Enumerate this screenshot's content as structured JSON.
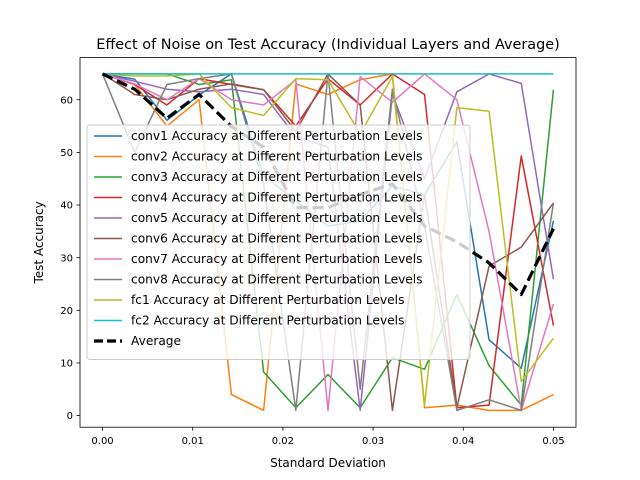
{
  "chart_data": {
    "type": "line",
    "title": "Effect of Noise on Test Accuracy (Individual Layers and Average)",
    "xlabel": "Standard Deviation",
    "ylabel": "Test Accuracy",
    "xlim": [
      -0.0025,
      0.0525
    ],
    "ylim": [
      -2.2,
      68.0
    ],
    "xticks": [
      0.0,
      0.01,
      0.02,
      0.03,
      0.04,
      0.05
    ],
    "xtick_labels": [
      "0.00",
      "0.01",
      "0.02",
      "0.03",
      "0.04",
      "0.05"
    ],
    "yticks": [
      0,
      10,
      20,
      30,
      40,
      50,
      60
    ],
    "ytick_labels": [
      "0",
      "10",
      "20",
      "30",
      "40",
      "50",
      "60"
    ],
    "legend_position": "center-left",
    "grid": false,
    "x": [
      0.0,
      0.00357,
      0.00714,
      0.01071,
      0.01429,
      0.01786,
      0.02143,
      0.025,
      0.02857,
      0.03214,
      0.03571,
      0.03929,
      0.04286,
      0.04643,
      0.05
    ],
    "series": [
      {
        "name": "conv1 Accuracy at Different Perturbation Levels",
        "color": "#1f77b4",
        "values": [
          64.9,
          63.9,
          56.1,
          60.9,
          64.9,
          45.6,
          40.8,
          36.0,
          37.0,
          43.6,
          42.0,
          52.0,
          14.4,
          9.0,
          37.0
        ]
      },
      {
        "name": "conv2 Accuracy at Different Perturbation Levels",
        "color": "#ff7f0e",
        "values": [
          64.9,
          62.9,
          55.0,
          60.0,
          4.0,
          1.0,
          63.0,
          61.0,
          63.8,
          64.9,
          1.5,
          2.0,
          1.0,
          1.0,
          4.0
        ]
      },
      {
        "name": "conv3 Accuracy at Different Perturbation Levels",
        "color": "#2ca02c",
        "values": [
          64.9,
          64.9,
          64.9,
          62.9,
          63.8,
          8.3,
          1.5,
          7.8,
          1.5,
          11.0,
          8.8,
          23.0,
          9.5,
          2.0,
          61.9
        ]
      },
      {
        "name": "conv4 Accuracy at Different Perturbation Levels",
        "color": "#d62728",
        "values": [
          64.9,
          62.9,
          59.0,
          64.0,
          62.9,
          61.9,
          55.0,
          64.0,
          59.0,
          64.9,
          61.0,
          1.5,
          2.0,
          49.3,
          17.1
        ]
      },
      {
        "name": "conv5 Accuracy at Different Perturbation Levels",
        "color": "#9467bd",
        "values": [
          64.9,
          63.5,
          62.0,
          61.5,
          62.0,
          61.0,
          53.0,
          51.0,
          1.0,
          61.0,
          45.0,
          61.5,
          64.9,
          63.1,
          25.9
        ]
      },
      {
        "name": "conv6 Accuracy at Different Perturbation Levels",
        "color": "#8c564b",
        "values": [
          64.9,
          61.0,
          60.0,
          62.0,
          63.0,
          61.9,
          54.0,
          64.9,
          59.0,
          1.0,
          42.0,
          1.5,
          28.4,
          32.0,
          40.4
        ]
      },
      {
        "name": "conv7 Accuracy at Different Perturbation Levels",
        "color": "#e377c2",
        "values": [
          64.9,
          63.0,
          60.0,
          64.0,
          60.0,
          59.0,
          63.8,
          1.0,
          64.4,
          59.5,
          64.9,
          60.0,
          35.0,
          1.0,
          21.2
        ]
      },
      {
        "name": "conv8 Accuracy at Different Perturbation Levels",
        "color": "#7f7f7f",
        "values": [
          64.9,
          50.0,
          62.9,
          64.0,
          64.9,
          44.0,
          1.0,
          64.9,
          5.0,
          62.0,
          36.0,
          1.0,
          3.0,
          1.0,
          40.4
        ]
      },
      {
        "name": "fc1 Accuracy at Different Perturbation Levels",
        "color": "#bcbd22",
        "values": [
          64.9,
          64.5,
          64.5,
          64.9,
          58.5,
          57.0,
          64.0,
          63.8,
          53.5,
          64.4,
          2.0,
          58.5,
          57.8,
          6.5,
          14.7
        ]
      },
      {
        "name": "fc2 Accuracy at Different Perturbation Levels",
        "color": "#17becf",
        "values": [
          64.9,
          64.9,
          64.9,
          64.9,
          64.9,
          64.9,
          64.9,
          64.9,
          64.9,
          64.9,
          64.9,
          64.9,
          64.9,
          64.9,
          64.9
        ]
      },
      {
        "name": "Average",
        "color": "#000000",
        "dashed": true,
        "values": [
          64.9,
          62.0,
          56.5,
          61.0,
          54.9,
          51.0,
          39.5,
          39.5,
          42.0,
          44.0,
          36.0,
          33.0,
          29.0,
          23.0,
          35.5
        ]
      }
    ]
  }
}
